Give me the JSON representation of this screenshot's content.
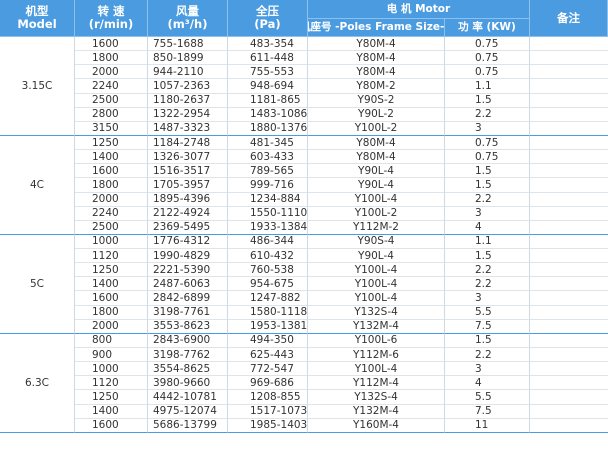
{
  "header": {
    "model": [
      "机型",
      "Model"
    ],
    "speed": [
      "转 速",
      "(r/min)"
    ],
    "airflow": [
      "风量",
      "(m³/h)"
    ],
    "pressure": [
      "全压",
      "(Pa)"
    ],
    "motor": "电 机 Motor",
    "frame": "机座号 -Poles Frame Size-P",
    "power": "功 率 (KW)",
    "remarks": "备注"
  },
  "groups": [
    {
      "model": "3.15C",
      "rows": [
        [
          1600,
          "755-1688",
          "483-354",
          "Y80M-4",
          0.75
        ],
        [
          1800,
          "850-1899",
          "611-448",
          "Y80M-4",
          0.75
        ],
        [
          2000,
          "944-2110",
          "755-553",
          "Y80M-4",
          0.75
        ],
        [
          2240,
          "1057-2363",
          "948-694",
          "Y80M-2",
          1.1
        ],
        [
          2500,
          "1180-2637",
          "1181-865",
          "Y90S-2",
          1.5
        ],
        [
          2800,
          "1322-2954",
          "1483-1086",
          "Y90L-2",
          2.2
        ],
        [
          3150,
          "1487-3323",
          "1880-1376",
          "Y100L-2",
          3
        ]
      ]
    },
    {
      "model": "4C",
      "rows": [
        [
          1250,
          "1184-2748",
          "481-345",
          "Y80M-4",
          0.75
        ],
        [
          1400,
          "1326-3077",
          "603-433",
          "Y80M-4",
          0.75
        ],
        [
          1600,
          "1516-3517",
          "789-565",
          "Y90L-4",
          1.5
        ],
        [
          1800,
          "1705-3957",
          "999-716",
          "Y90L-4",
          1.5
        ],
        [
          2000,
          "1895-4396",
          "1234-884",
          "Y100L-4",
          2.2
        ],
        [
          2240,
          "2122-4924",
          "1550-1110",
          "Y100L-2",
          3
        ],
        [
          2500,
          "2369-5495",
          "1933-1384",
          "Y112M-2",
          4
        ]
      ]
    },
    {
      "model": "5C",
      "rows": [
        [
          1000,
          "1776-4312",
          "486-344",
          "Y90S-4",
          1.1
        ],
        [
          1120,
          "1990-4829",
          "610-432",
          "Y90L-4",
          1.5
        ],
        [
          1250,
          "2221-5390",
          "760-538",
          "Y100L-4",
          2.2
        ],
        [
          1400,
          "2487-6063",
          "954-675",
          "Y100L-4",
          2.2
        ],
        [
          1600,
          "2842-6899",
          "1247-882",
          "Y100L-4",
          3
        ],
        [
          1800,
          "3198-7761",
          "1580-1118",
          "Y132S-4",
          5.5
        ],
        [
          2000,
          "3553-8623",
          "1953-1381",
          "Y132M-4",
          7.5
        ]
      ]
    },
    {
      "model": "6.3C",
      "rows": [
        [
          800,
          "2843-6900",
          "494-350",
          "Y100L-6",
          1.5
        ],
        [
          900,
          "3198-7762",
          "625-443",
          "Y112M-6",
          2.2
        ],
        [
          1000,
          "3554-8625",
          "772-547",
          "Y100L-4",
          3
        ],
        [
          1120,
          "3980-9660",
          "969-686",
          "Y112M-4",
          4
        ],
        [
          1250,
          "4442-10781",
          "1208-855",
          "Y132S-4",
          5.5
        ],
        [
          1400,
          "4975-12074",
          "1517-1073",
          "Y132M-4",
          7.5
        ],
        [
          1600,
          "5686-13799",
          "1985-1403",
          "Y160M-4",
          11
        ]
      ]
    }
  ]
}
